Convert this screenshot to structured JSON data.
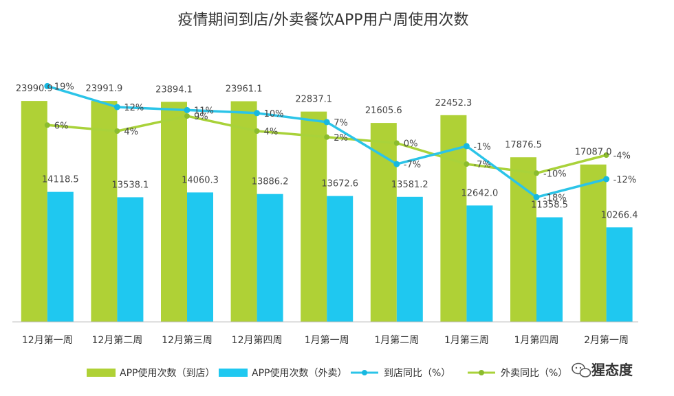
{
  "chart_data": {
    "type": "bar",
    "title": "疫情期间到店/外卖餐饮APP用户周使用次数",
    "categories": [
      "12月第一周",
      "12月第二周",
      "12月第三周",
      "12月第四周",
      "1月第一周",
      "1月第二周",
      "1月第三周",
      "1月第四周",
      "2月第一周"
    ],
    "bar_series": [
      {
        "name": "APP使用次数（到店）",
        "color": "#afd136",
        "values": [
          23990.9,
          23991.9,
          23894.1,
          23961.1,
          22837.1,
          21605.6,
          22452.3,
          17876.5,
          17087.0
        ],
        "labels": [
          "23990.9",
          "23991.9",
          "23894.1",
          "23961.1",
          "22837.1",
          "21605.6",
          "22452.3",
          "17876.5",
          "17087.0"
        ]
      },
      {
        "name": "APP使用次数（外卖）",
        "color": "#1fc8f0",
        "values": [
          14118.5,
          13538.1,
          14060.3,
          13886.2,
          13672.6,
          13581.2,
          12642.0,
          11358.5,
          10266.4
        ],
        "labels": [
          "14118.5",
          "13538.1",
          "14060.3",
          "13886.2",
          "13672.6",
          "13581.2",
          "12642.0",
          "11358.5",
          "10266.4"
        ]
      }
    ],
    "line_series": [
      {
        "name": "到店同比（%）",
        "color": "#2bc4e8",
        "values": [
          19,
          12,
          11,
          10,
          7,
          -7,
          -1,
          -18,
          -12
        ],
        "labels": [
          "19%",
          "12%",
          "11%",
          "10%",
          "7%",
          "-7%",
          "-1%",
          "-18%",
          "-12%"
        ]
      },
      {
        "name": "外卖同比（%）",
        "color": "#a9d23a",
        "values": [
          6,
          4,
          9,
          4,
          2,
          0,
          -7,
          -10,
          -4
        ],
        "labels": [
          "6%",
          "4%",
          "9%",
          "4%",
          "2%",
          "0%",
          "-7%",
          "-10%",
          "-4%"
        ]
      }
    ],
    "ylim_bars": [
      0,
      24000
    ],
    "ylim_lines": [
      -60,
      20
    ],
    "grid": false,
    "legend_position": "bottom"
  },
  "watermark": {
    "text": "猩态度",
    "icon": "wechat-icon"
  }
}
